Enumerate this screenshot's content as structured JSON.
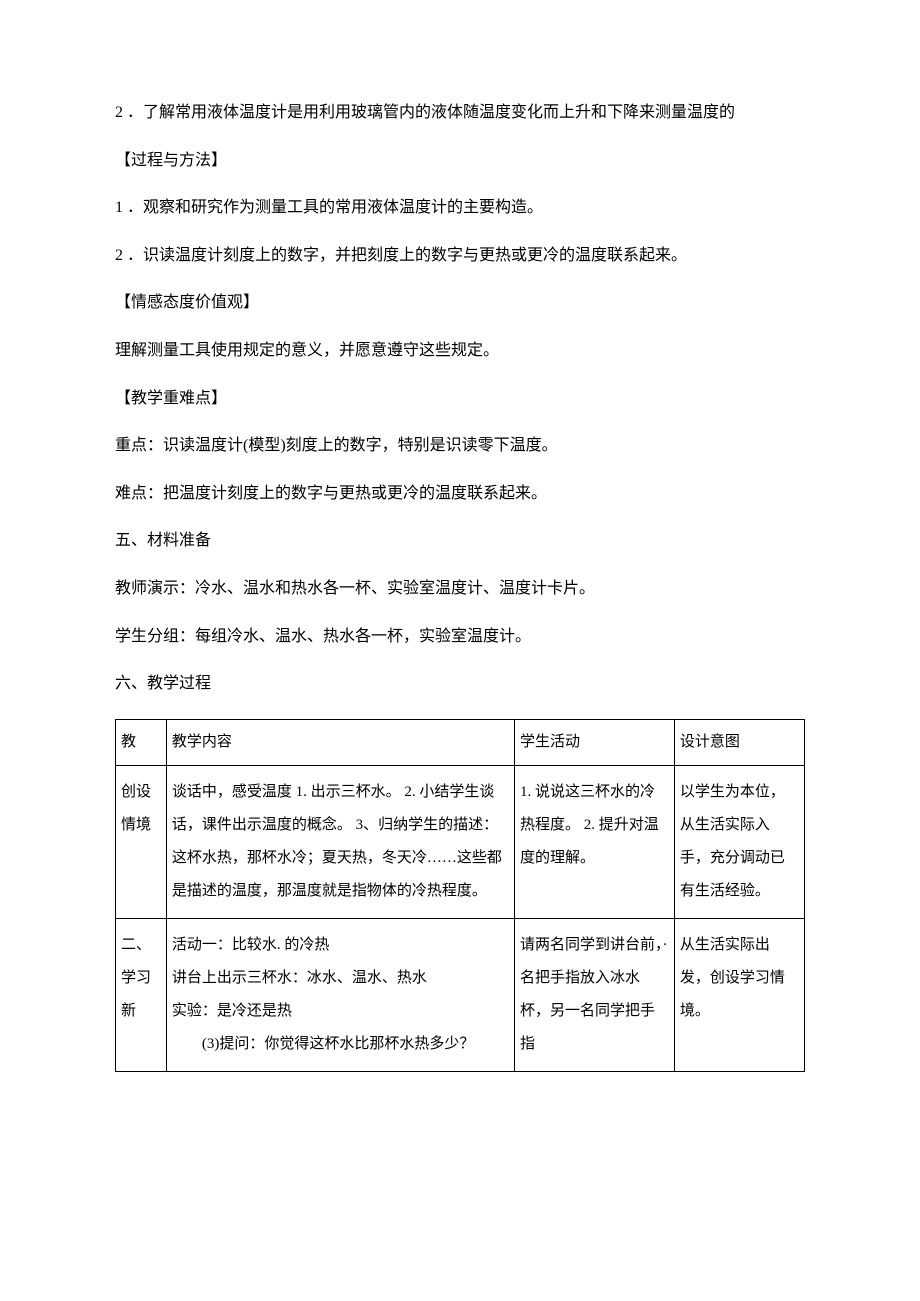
{
  "paragraphs": {
    "p1": "2 ．了解常用液体温度计是用利用玻璃管内的液体随温度变化而上升和下降来测量温度的",
    "p2": "【过程与方法】",
    "p3": "1 ．观察和研究作为测量工具的常用液体温度计的主要构造。",
    "p4": "2 ．识读温度计刻度上的数字，并把刻度上的数字与更热或更冷的温度联系起来。",
    "p5": "【情感态度价值观】",
    "p6": "理解测量工具使用规定的意义，并愿意遵守这些规定。",
    "p7": "【教学重难点】",
    "p8": "重点：识读温度计(模型)刻度上的数字，特别是识读零下温度。",
    "p9": "难点：把温度计刻度上的数字与更热或更冷的温度联系起来。",
    "p10": "五、材料准备",
    "p11": "教师演示：冷水、温水和热水各一杯、实验室温度计、温度计卡片。",
    "p12": "学生分组：每组冷水、温水、热水各一杯，实验室温度计。",
    "p13": "六、教学过程"
  },
  "table": {
    "header": {
      "c1": "教",
      "c2": "教学内容",
      "c3": "学生活动",
      "c4": "设计意图"
    },
    "row1": {
      "c1": "创设情境",
      "c2": "谈话中，感受温度\n1. 出示三杯水。\n2. 小结学生谈话，课件出示温度的概念。\n3、归纳学生的描述：这杯水热，那杯水冷；夏天热，冬天冷……这些都是描述的温度，那温度就是指物体的冷热程度。",
      "c3": "1. 说说这三杯水的冷热程度。\n2. 提升对温度的理解。",
      "c4": "以学生为本位，从生活实际入手，充分调动已有生活经验。"
    },
    "row2": {
      "c1": "二、学习新",
      "c2_line1": "活动一：比较水. 的冷热",
      "c2_line2": "讲台上出示三杯水：冰水、温水、热水",
      "c2_line3": "实验：是冷还是热",
      "c2_line4": "(3)提问：你觉得这杯水比那杯水热多少？",
      "c3": "   请两名同学到讲台前，·名把手指放入冰水杯，另一名同学把手指",
      "c4": "从生活实际出发，创设学习情境。"
    }
  }
}
